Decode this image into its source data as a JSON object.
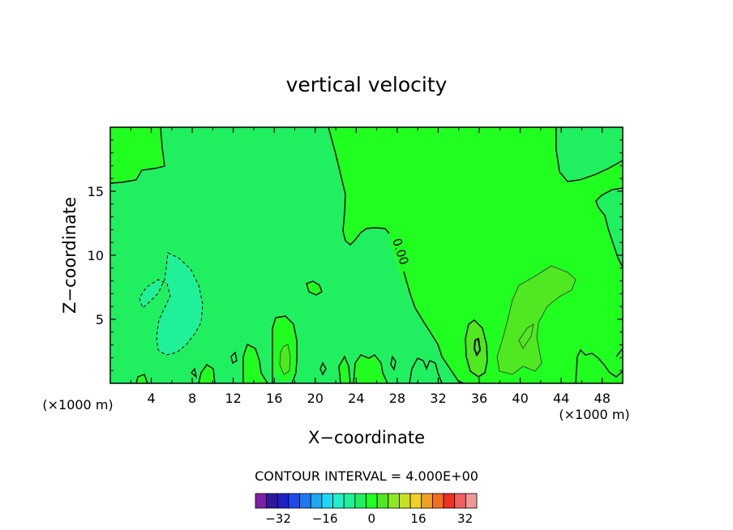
{
  "chart_data": {
    "type": "heatmap",
    "title": "vertical velocity",
    "xlabel": "X−coordinate",
    "ylabel": "Z−coordinate",
    "x_unit_left": "(×1000 m)",
    "x_unit_right": "(×1000 m)",
    "xlim": [
      0,
      50
    ],
    "ylim": [
      0,
      20
    ],
    "x_ticks": [
      4,
      8,
      12,
      16,
      20,
      24,
      28,
      32,
      36,
      40,
      44,
      48
    ],
    "y_ticks": [
      5,
      10,
      15
    ],
    "contour_interval_label": "CONTOUR INTERVAL = 4.000E+00",
    "contour_interval": 4,
    "zero_contour_label": "0.00",
    "colorbar": {
      "levels": [
        -36,
        -32,
        -28,
        -24,
        -20,
        -16,
        -12,
        -8,
        -4,
        0,
        4,
        8,
        12,
        16,
        20,
        24,
        28,
        32,
        36
      ],
      "colors": [
        "#7f1fa8",
        "#2e189e",
        "#2020c8",
        "#1f48ee",
        "#1e78ef",
        "#1fa8f0",
        "#1fd8f0",
        "#20f0c8",
        "#20f098",
        "#20f060",
        "#20ff20",
        "#50e820",
        "#90e820",
        "#c8e020",
        "#f0d020",
        "#f0a020",
        "#f07020",
        "#f03020",
        "#f06060",
        "#f09898"
      ],
      "tick_labels": [
        "−32",
        "−16",
        "0",
        "16",
        "32"
      ],
      "tick_values": [
        -32,
        -16,
        0,
        16,
        32
      ]
    },
    "field_colors": {
      "background": "#20f060",
      "positive": "#20ff20",
      "negative": "#20f098",
      "strong_positive": "#50e820"
    }
  }
}
